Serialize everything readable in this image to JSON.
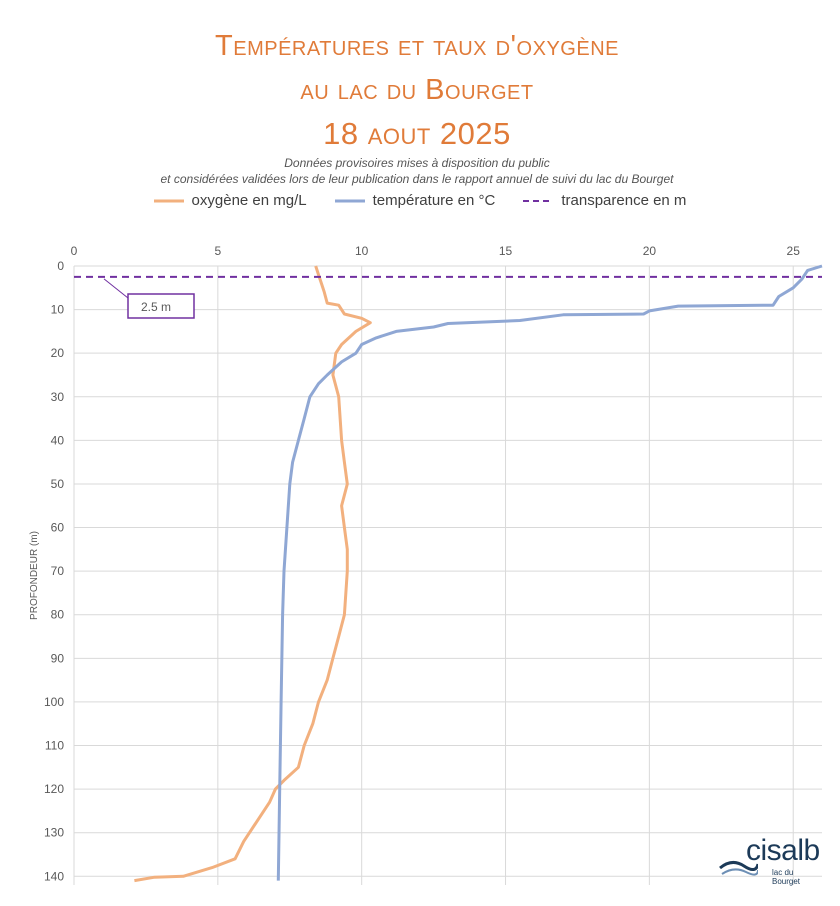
{
  "title": {
    "line1": "Températures et taux d'oxygène",
    "line2": "au lac du Bourget",
    "date": "18 aout 2025"
  },
  "subtitle": {
    "line1": "Données provisoires mises à disposition du public",
    "line2": "et considérées validées lors de leur publication dans le rapport annuel de suivi du lac du Bourget"
  },
  "colors": {
    "title": "#e07b39",
    "oxygen": "#f2b07e",
    "temperature": "#8fa7d4",
    "transparency": "#7030a0",
    "grid": "#d9d9d9"
  },
  "logo": {
    "name": "cisalb",
    "tagline": "lac du Bourget",
    "icon": "wave-logo-icon"
  },
  "chart_data": {
    "type": "line",
    "orientation": "depth-profile",
    "ylabel": "PROFONDEUR (m)",
    "xlabel": "",
    "xlim": [
      0,
      26
    ],
    "ylim": [
      0,
      142
    ],
    "y_inverted": true,
    "grid": true,
    "legend_position": "top",
    "x_ticks": [
      0,
      5,
      10,
      15,
      20,
      25
    ],
    "y_ticks": [
      0,
      10,
      20,
      30,
      40,
      50,
      60,
      70,
      80,
      90,
      100,
      110,
      120,
      130,
      140
    ],
    "series": [
      {
        "name": "oxygène en mg/L",
        "color": "#f2b07e",
        "points": [
          [
            8.4,
            0
          ],
          [
            8.5,
            2
          ],
          [
            8.6,
            4
          ],
          [
            8.7,
            6
          ],
          [
            8.8,
            8.5
          ],
          [
            9.2,
            9
          ],
          [
            9.4,
            11
          ],
          [
            10.0,
            12
          ],
          [
            10.3,
            13
          ],
          [
            9.8,
            15
          ],
          [
            9.3,
            18
          ],
          [
            9.1,
            20
          ],
          [
            9.0,
            25
          ],
          [
            9.2,
            30
          ],
          [
            9.3,
            40
          ],
          [
            9.4,
            45
          ],
          [
            9.5,
            50
          ],
          [
            9.3,
            55
          ],
          [
            9.4,
            60
          ],
          [
            9.5,
            65
          ],
          [
            9.5,
            70
          ],
          [
            9.4,
            80
          ],
          [
            9.2,
            85
          ],
          [
            9.0,
            90
          ],
          [
            8.8,
            95
          ],
          [
            8.5,
            100
          ],
          [
            8.3,
            105
          ],
          [
            8.0,
            110
          ],
          [
            7.8,
            115
          ],
          [
            7.3,
            118
          ],
          [
            7.0,
            120
          ],
          [
            6.8,
            123
          ],
          [
            6.3,
            128
          ],
          [
            5.9,
            132
          ],
          [
            5.6,
            136
          ],
          [
            4.8,
            138
          ],
          [
            3.8,
            140
          ],
          [
            2.8,
            140.2
          ],
          [
            2.1,
            141
          ]
        ]
      },
      {
        "name": "température en °C",
        "color": "#8fa7d4",
        "points": [
          [
            26.0,
            0
          ],
          [
            25.5,
            1
          ],
          [
            25.3,
            3
          ],
          [
            25.0,
            5
          ],
          [
            24.5,
            7
          ],
          [
            24.3,
            9
          ],
          [
            21.0,
            9.2
          ],
          [
            20.0,
            10.3
          ],
          [
            19.8,
            11
          ],
          [
            17.0,
            11.2
          ],
          [
            15.5,
            12.5
          ],
          [
            13.0,
            13.2
          ],
          [
            12.5,
            14
          ],
          [
            11.2,
            15
          ],
          [
            10.5,
            16.5
          ],
          [
            10.0,
            18
          ],
          [
            9.8,
            20
          ],
          [
            9.3,
            22
          ],
          [
            8.8,
            25
          ],
          [
            8.5,
            27
          ],
          [
            8.2,
            30
          ],
          [
            8.0,
            35
          ],
          [
            7.8,
            40
          ],
          [
            7.6,
            45
          ],
          [
            7.5,
            50
          ],
          [
            7.4,
            60
          ],
          [
            7.3,
            70
          ],
          [
            7.25,
            80
          ],
          [
            7.2,
            100
          ],
          [
            7.15,
            120
          ],
          [
            7.1,
            141
          ]
        ]
      },
      {
        "name": "transparence en m",
        "color": "#7030a0",
        "style": "dashed",
        "value": 2.5
      }
    ],
    "annotations": [
      {
        "text": "2.5 m",
        "depth": 2.5
      }
    ]
  }
}
